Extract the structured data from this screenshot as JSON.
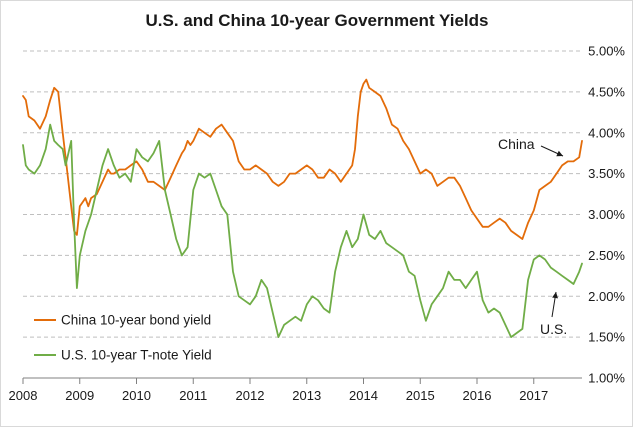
{
  "chart_data": {
    "type": "line",
    "title": "U.S. and China 10-year Government Yields",
    "xlabel": "",
    "ylabel": "",
    "x_ticks": [
      "2008",
      "2009",
      "2010",
      "2011",
      "2012",
      "2013",
      "2014",
      "2015",
      "2016",
      "2017"
    ],
    "x_range": [
      2008.0,
      2017.85
    ],
    "y_ticks": [
      "1.00%",
      "1.50%",
      "2.00%",
      "2.50%",
      "3.00%",
      "3.50%",
      "4.00%",
      "4.50%",
      "5.00%"
    ],
    "ylim": [
      1.0,
      5.0
    ],
    "grid": "horizontal dashed",
    "series": [
      {
        "name": "China 10-year bond yield",
        "color": "#E36C0A",
        "x": [
          2008.0,
          2008.05,
          2008.1,
          2008.2,
          2008.3,
          2008.4,
          2008.48,
          2008.55,
          2008.62,
          2008.7,
          2008.75,
          2008.8,
          2008.85,
          2008.9,
          2008.95,
          2009.0,
          2009.05,
          2009.1,
          2009.15,
          2009.2,
          2009.3,
          2009.4,
          2009.5,
          2009.55,
          2009.6,
          2009.7,
          2009.8,
          2009.9,
          2010.0,
          2010.1,
          2010.2,
          2010.3,
          2010.4,
          2010.5,
          2010.6,
          2010.7,
          2010.8,
          2010.85,
          2010.9,
          2010.95,
          2011.0,
          2011.1,
          2011.2,
          2011.3,
          2011.4,
          2011.5,
          2011.6,
          2011.7,
          2011.8,
          2011.9,
          2012.0,
          2012.1,
          2012.2,
          2012.3,
          2012.4,
          2012.5,
          2012.6,
          2012.7,
          2012.8,
          2012.9,
          2013.0,
          2013.1,
          2013.2,
          2013.3,
          2013.4,
          2013.5,
          2013.6,
          2013.7,
          2013.8,
          2013.85,
          2013.9,
          2013.95,
          2014.0,
          2014.05,
          2014.1,
          2014.2,
          2014.3,
          2014.4,
          2014.5,
          2014.6,
          2014.7,
          2014.8,
          2014.9,
          2015.0,
          2015.1,
          2015.2,
          2015.3,
          2015.4,
          2015.5,
          2015.6,
          2015.7,
          2015.8,
          2015.9,
          2016.0,
          2016.1,
          2016.2,
          2016.3,
          2016.4,
          2016.5,
          2016.6,
          2016.7,
          2016.8,
          2016.9,
          2017.0,
          2017.1,
          2017.2,
          2017.3,
          2017.4,
          2017.5,
          2017.6,
          2017.7,
          2017.8,
          2017.85
        ],
        "values": [
          4.45,
          4.4,
          4.2,
          4.15,
          4.05,
          4.2,
          4.4,
          4.55,
          4.5,
          4.0,
          3.7,
          3.4,
          3.1,
          2.8,
          2.75,
          3.1,
          3.15,
          3.2,
          3.1,
          3.2,
          3.25,
          3.4,
          3.55,
          3.5,
          3.5,
          3.55,
          3.55,
          3.6,
          3.65,
          3.55,
          3.4,
          3.4,
          3.35,
          3.3,
          3.45,
          3.6,
          3.75,
          3.8,
          3.9,
          3.85,
          3.9,
          4.05,
          4.0,
          3.95,
          4.05,
          4.1,
          4.0,
          3.9,
          3.65,
          3.55,
          3.55,
          3.6,
          3.55,
          3.5,
          3.4,
          3.35,
          3.4,
          3.5,
          3.5,
          3.55,
          3.6,
          3.55,
          3.45,
          3.45,
          3.55,
          3.5,
          3.4,
          3.5,
          3.6,
          3.8,
          4.2,
          4.5,
          4.6,
          4.65,
          4.55,
          4.5,
          4.45,
          4.3,
          4.1,
          4.05,
          3.9,
          3.8,
          3.65,
          3.5,
          3.55,
          3.5,
          3.35,
          3.4,
          3.45,
          3.45,
          3.35,
          3.2,
          3.05,
          2.95,
          2.85,
          2.85,
          2.9,
          2.95,
          2.9,
          2.8,
          2.75,
          2.7,
          2.9,
          3.05,
          3.3,
          3.35,
          3.4,
          3.5,
          3.6,
          3.65,
          3.65,
          3.7,
          3.9
        ]
      },
      {
        "name": "U.S. 10-year T-note Yield",
        "color": "#70AD47",
        "x": [
          2008.0,
          2008.05,
          2008.1,
          2008.2,
          2008.3,
          2008.4,
          2008.48,
          2008.55,
          2008.62,
          2008.7,
          2008.75,
          2008.8,
          2008.85,
          2008.9,
          2008.95,
          2009.0,
          2009.1,
          2009.2,
          2009.3,
          2009.4,
          2009.5,
          2009.6,
          2009.7,
          2009.8,
          2009.9,
          2010.0,
          2010.1,
          2010.2,
          2010.3,
          2010.4,
          2010.5,
          2010.6,
          2010.7,
          2010.8,
          2010.9,
          2011.0,
          2011.1,
          2011.2,
          2011.3,
          2011.4,
          2011.5,
          2011.6,
          2011.7,
          2011.8,
          2011.9,
          2012.0,
          2012.1,
          2012.2,
          2012.3,
          2012.4,
          2012.5,
          2012.6,
          2012.7,
          2012.8,
          2012.9,
          2013.0,
          2013.1,
          2013.2,
          2013.3,
          2013.4,
          2013.5,
          2013.6,
          2013.7,
          2013.8,
          2013.9,
          2014.0,
          2014.1,
          2014.2,
          2014.3,
          2014.4,
          2014.5,
          2014.6,
          2014.7,
          2014.8,
          2014.9,
          2015.0,
          2015.1,
          2015.2,
          2015.3,
          2015.4,
          2015.5,
          2015.6,
          2015.7,
          2015.8,
          2015.9,
          2016.0,
          2016.1,
          2016.2,
          2016.3,
          2016.4,
          2016.5,
          2016.6,
          2016.7,
          2016.8,
          2016.9,
          2017.0,
          2017.1,
          2017.2,
          2017.3,
          2017.4,
          2017.5,
          2017.6,
          2017.7,
          2017.8,
          2017.85
        ],
        "values": [
          3.85,
          3.6,
          3.55,
          3.5,
          3.6,
          3.8,
          4.1,
          3.9,
          3.85,
          3.8,
          3.6,
          3.75,
          3.9,
          2.9,
          2.1,
          2.5,
          2.8,
          3.0,
          3.3,
          3.6,
          3.8,
          3.6,
          3.45,
          3.5,
          3.4,
          3.8,
          3.7,
          3.65,
          3.75,
          3.9,
          3.3,
          3.0,
          2.7,
          2.5,
          2.6,
          3.3,
          3.5,
          3.45,
          3.5,
          3.3,
          3.1,
          3.0,
          2.3,
          2.0,
          1.95,
          1.9,
          2.0,
          2.2,
          2.1,
          1.8,
          1.5,
          1.65,
          1.7,
          1.75,
          1.7,
          1.9,
          2.0,
          1.95,
          1.85,
          1.8,
          2.3,
          2.6,
          2.8,
          2.6,
          2.7,
          3.0,
          2.75,
          2.7,
          2.8,
          2.65,
          2.6,
          2.55,
          2.5,
          2.3,
          2.25,
          1.95,
          1.7,
          1.9,
          2.0,
          2.1,
          2.3,
          2.2,
          2.2,
          2.1,
          2.2,
          2.3,
          1.95,
          1.8,
          1.85,
          1.8,
          1.65,
          1.5,
          1.55,
          1.6,
          2.2,
          2.45,
          2.5,
          2.45,
          2.35,
          2.3,
          2.25,
          2.2,
          2.15,
          2.3,
          2.4
        ]
      }
    ],
    "legend": {
      "position": "bottom-left",
      "entries": [
        "China 10-year bond yield",
        "U.S. 10-year T-note Yield"
      ]
    },
    "annotations": [
      {
        "text": "China",
        "target_series": "China 10-year bond yield",
        "x": 2017.7,
        "y": 3.87
      },
      {
        "text": "U.S.",
        "target_series": "U.S. 10-year T-note Yield",
        "x": 2017.65,
        "y": 2.15
      }
    ],
    "axis_color": "#808080",
    "grid_color": "#bfbfbf"
  }
}
